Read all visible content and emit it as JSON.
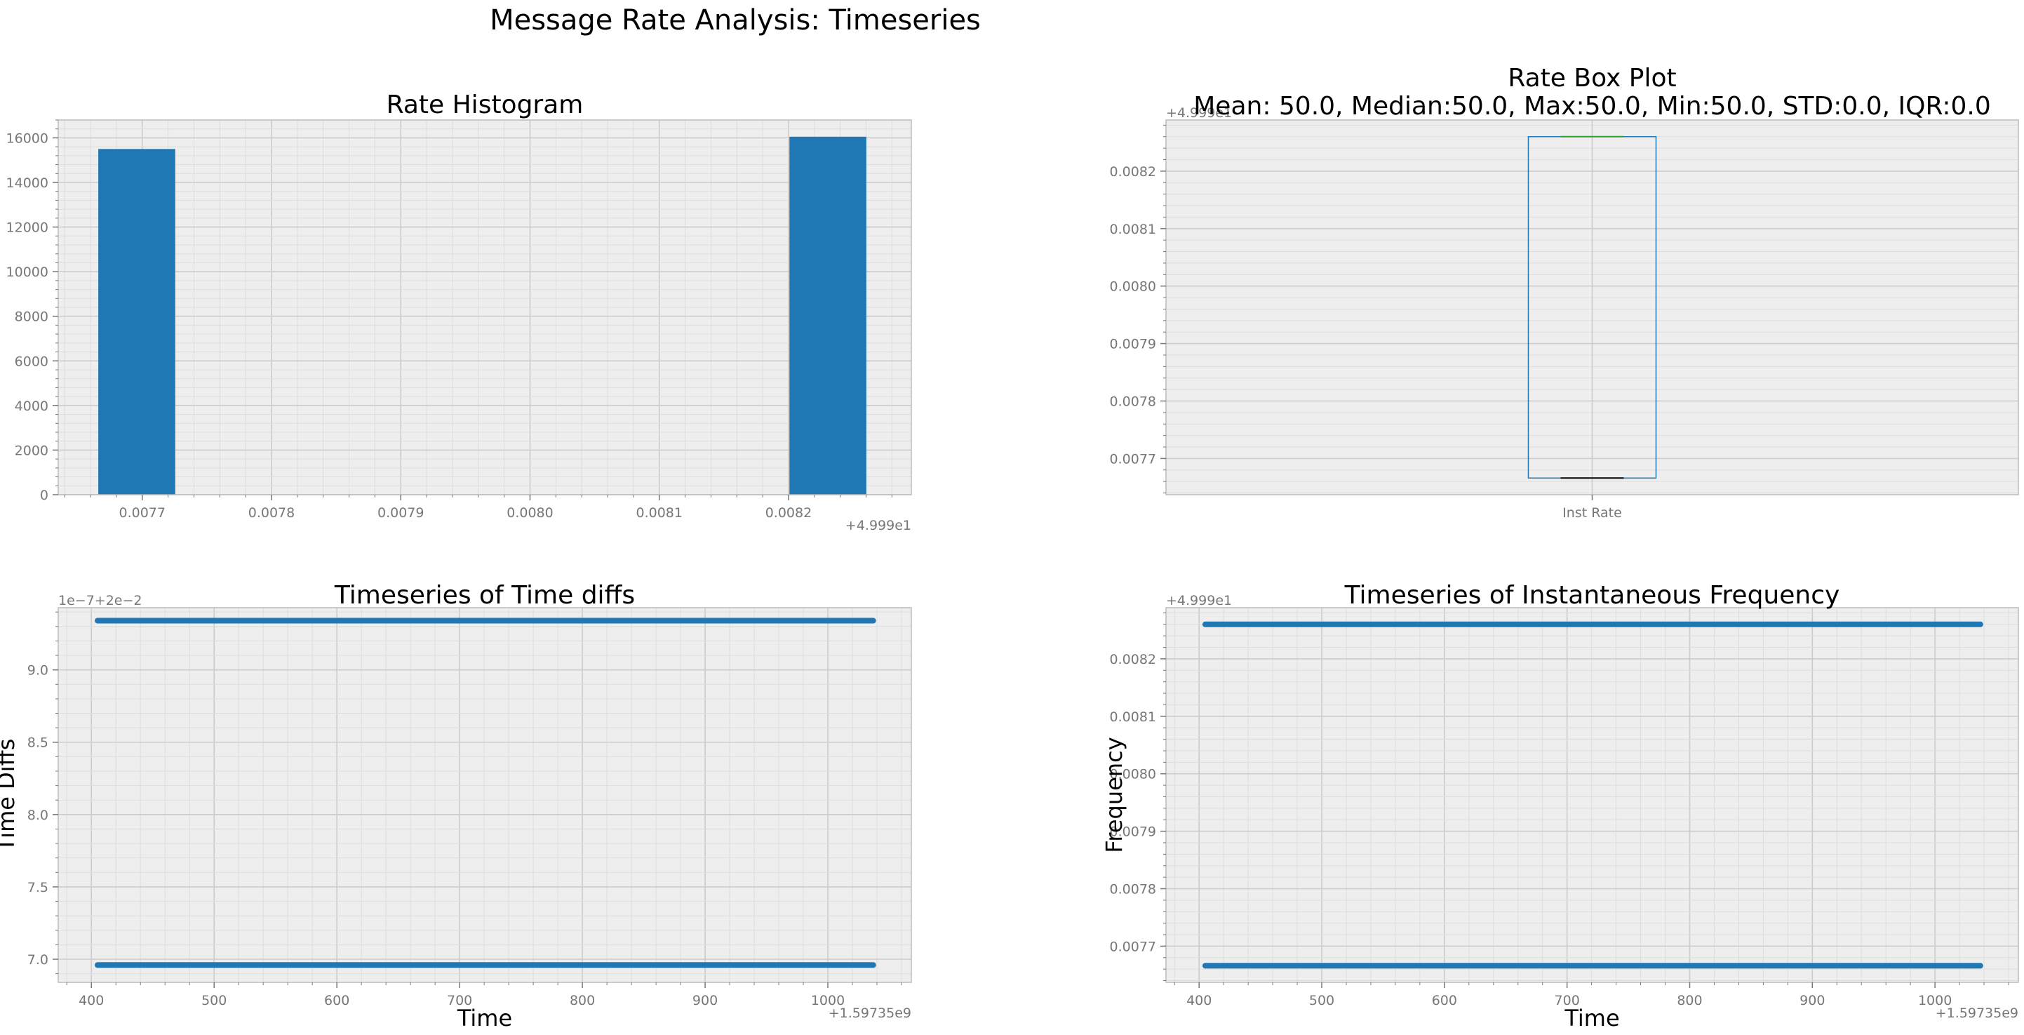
{
  "figure": {
    "suptitle": "Message Rate Analysis: Timeseries"
  },
  "chart_data": [
    {
      "id": "hist",
      "type": "bar",
      "title": "Rate Histogram",
      "xlabel": "",
      "ylabel": "",
      "x_offset_text": "+4.999e1",
      "xlim": [
        0.007635,
        0.008295
      ],
      "ylim": [
        0,
        16800
      ],
      "xticks": [
        0.0077,
        0.0078,
        0.0079,
        0.008,
        0.0081,
        0.0082
      ],
      "xtick_labels": [
        "0.0077",
        "0.0078",
        "0.0079",
        "0.0080",
        "0.0081",
        "0.0082"
      ],
      "yticks": [
        0,
        2000,
        4000,
        6000,
        8000,
        10000,
        12000,
        14000,
        16000
      ],
      "ytick_labels": [
        "0",
        "2000",
        "4000",
        "6000",
        "8000",
        "10000",
        "12000",
        "14000",
        "16000"
      ],
      "bars": [
        {
          "x0": 0.007666,
          "x1": 0.0077255,
          "value": 15500
        },
        {
          "x0": 0.0082007,
          "x1": 0.0082602,
          "value": 16050
        }
      ],
      "grid": true,
      "colors": {
        "bar": "#1f77b4"
      }
    },
    {
      "id": "box",
      "type": "box",
      "title": "Rate Box Plot\nMean: 50.0, Median:50.0, Max:50.0, Min:50.0, STD:0.0, IQR:0.0",
      "title_lines": [
        "Rate Box Plot",
        "Mean: 50.0, Median:50.0, Max:50.0, Min:50.0, STD:0.0, IQR:0.0"
      ],
      "y_offset_text": "+4.999e1",
      "categories": [
        "Inst Rate"
      ],
      "ylim": [
        0.007637,
        0.008289
      ],
      "yticks": [
        0.0077,
        0.0078,
        0.0079,
        0.008,
        0.0081,
        0.0082
      ],
      "ytick_labels": [
        "0.0077",
        "0.0078",
        "0.0079",
        "0.0080",
        "0.0081",
        "0.0082"
      ],
      "box": {
        "q1": 0.007666,
        "median": 0.007666,
        "q3": 0.00826,
        "whisker_low": 0.007666,
        "whisker_high": 0.00826
      },
      "grid": true,
      "colors": {
        "box": "#1f77b4",
        "median": "#2ca02c",
        "whisker": "#000000"
      }
    },
    {
      "id": "diffs",
      "type": "scatter",
      "title": "Timeseries of Time diffs",
      "xlabel": "Time",
      "ylabel": "Time Diffs",
      "x_offset_text": "+1.59735e9",
      "y_offset_text": "1e−7+2e−2",
      "xlim": [
        373,
        1068
      ],
      "ylim": [
        6.84,
        9.43
      ],
      "xticks": [
        400,
        500,
        600,
        700,
        800,
        900,
        1000
      ],
      "xtick_labels": [
        "400",
        "500",
        "600",
        "700",
        "800",
        "900",
        "1000"
      ],
      "yticks": [
        7.0,
        7.5,
        8.0,
        8.5,
        9.0
      ],
      "ytick_labels": [
        "7.0",
        "7.5",
        "8.0",
        "8.5",
        "9.0"
      ],
      "series": [
        {
          "x_range": [
            405,
            1037
          ],
          "y": 9.34
        },
        {
          "x_range": [
            405,
            1037
          ],
          "y": 6.96
        }
      ],
      "grid": true,
      "colors": {
        "points": "#1f77b4"
      }
    },
    {
      "id": "freq",
      "type": "scatter",
      "title": "Timeseries of Instantaneous Frequency",
      "xlabel": "Time",
      "ylabel": "Frequency",
      "x_offset_text": "+1.59735e9",
      "y_offset_text": "+4.999e1",
      "xlim": [
        373,
        1068
      ],
      "ylim": [
        0.007637,
        0.008289
      ],
      "xticks": [
        400,
        500,
        600,
        700,
        800,
        900,
        1000
      ],
      "xtick_labels": [
        "400",
        "500",
        "600",
        "700",
        "800",
        "900",
        "1000"
      ],
      "yticks": [
        0.0077,
        0.0078,
        0.0079,
        0.008,
        0.0081,
        0.0082
      ],
      "ytick_labels": [
        "0.0077",
        "0.0078",
        "0.0079",
        "0.0080",
        "0.0081",
        "0.0082"
      ],
      "series": [
        {
          "x_range": [
            405,
            1037
          ],
          "y": 0.00826
        },
        {
          "x_range": [
            405,
            1037
          ],
          "y": 0.007666
        }
      ],
      "grid": true,
      "colors": {
        "points": "#1f77b4"
      }
    }
  ],
  "style": {
    "axes_bg": "#eeeeee",
    "grid_major": "#cccccc",
    "grid_minor": "#dddddd",
    "spine": "#bcbcbc",
    "tick_label": "#777777",
    "title": "#000000"
  }
}
